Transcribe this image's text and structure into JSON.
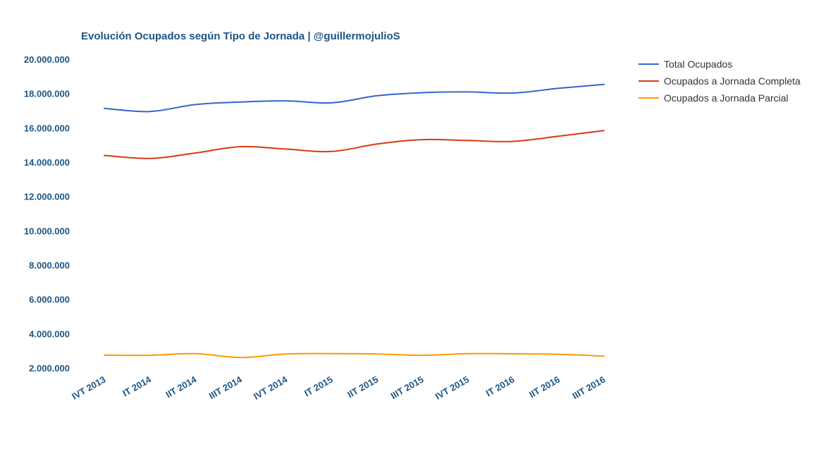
{
  "chart_data": {
    "type": "line",
    "title": "Evolución Ocupados según Tipo de Jornada | @guillermojulioS",
    "xlabel": "",
    "ylabel": "",
    "categories": [
      "IVT 2013",
      "IT 2014",
      "IIT 2014",
      "IIIT 2014",
      "IVT 2014",
      "IT 2015",
      "IIT 2015",
      "IIIT 2015",
      "IVT 2015",
      "IT 2016",
      "IIT 2016",
      "IIIT 2016"
    ],
    "ylim": [
      2000000,
      20000000
    ],
    "yticks": [
      2000000,
      4000000,
      6000000,
      8000000,
      10000000,
      12000000,
      14000000,
      16000000,
      18000000,
      20000000
    ],
    "ytick_labels": [
      "2.000.000",
      "4.000.000",
      "6.000.000",
      "8.000.000",
      "10.000.000",
      "12.000.000",
      "14.000.000",
      "16.000.000",
      "18.000.000",
      "20.000.000"
    ],
    "grid": false,
    "legend_position": "top-right",
    "series": [
      {
        "name": "Total Ocupados",
        "color": "#3366cc",
        "values": [
          17135000,
          16950000,
          17353000,
          17504000,
          17570000,
          17455000,
          17866000,
          18049000,
          18094000,
          18029000,
          18301000,
          18528000
        ]
      },
      {
        "name": "Ocupados a Jornada Completa",
        "color": "#dc3912",
        "values": [
          14390000,
          14215000,
          14530000,
          14900000,
          14760000,
          14620000,
          15050000,
          15310000,
          15260000,
          15210000,
          15510000,
          15840000
        ]
      },
      {
        "name": "Ocupados a Jornada Parcial",
        "color": "#ff9900",
        "values": [
          2745000,
          2735000,
          2830000,
          2610000,
          2810000,
          2835000,
          2815000,
          2735000,
          2835000,
          2820000,
          2790000,
          2690000
        ]
      }
    ]
  }
}
